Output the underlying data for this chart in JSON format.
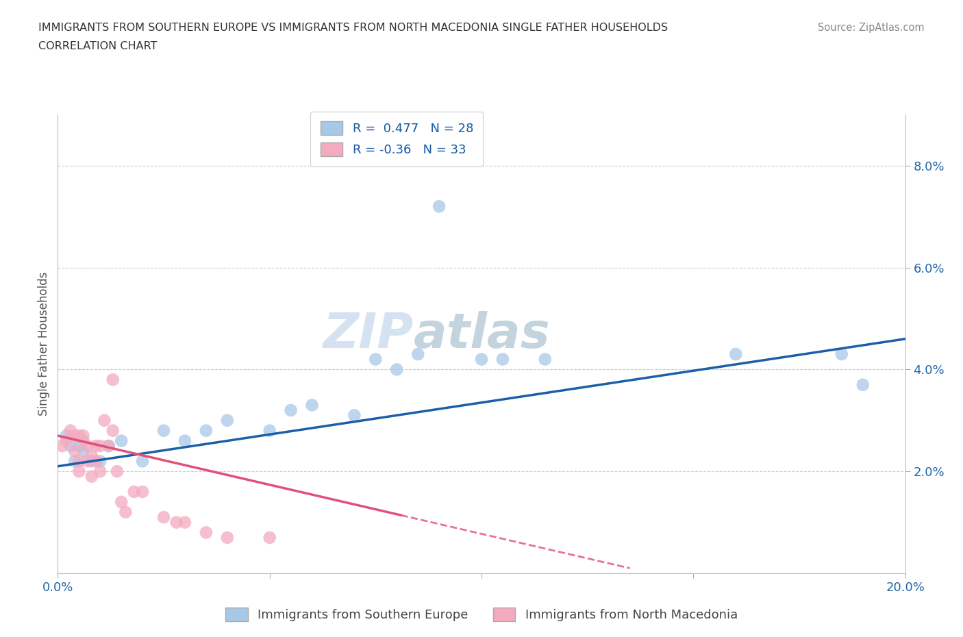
{
  "title_line1": "IMMIGRANTS FROM SOUTHERN EUROPE VS IMMIGRANTS FROM NORTH MACEDONIA SINGLE FATHER HOUSEHOLDS",
  "title_line2": "CORRELATION CHART",
  "source_text": "Source: ZipAtlas.com",
  "ylabel": "Single Father Households",
  "watermark_part1": "ZIP",
  "watermark_part2": "atlas",
  "blue_R": 0.477,
  "blue_N": 28,
  "pink_R": -0.36,
  "pink_N": 33,
  "blue_color": "#A8C8E8",
  "pink_color": "#F4AABF",
  "blue_line_color": "#1A5FA8",
  "pink_line_color": "#E0507A",
  "background_color": "#FFFFFF",
  "xlim": [
    0.0,
    0.2
  ],
  "ylim": [
    0.0,
    0.09
  ],
  "grid_color": "#CCCCCC",
  "legend_label_blue": "Immigrants from Southern Europe",
  "legend_label_pink": "Immigrants from North Macedonia",
  "blue_scatter_x": [
    0.002,
    0.003,
    0.004,
    0.005,
    0.006,
    0.008,
    0.01,
    0.012,
    0.015,
    0.02,
    0.025,
    0.03,
    0.035,
    0.04,
    0.05,
    0.055,
    0.06,
    0.07,
    0.075,
    0.08,
    0.085,
    0.09,
    0.1,
    0.105,
    0.115,
    0.16,
    0.185,
    0.19
  ],
  "blue_scatter_y": [
    0.027,
    0.025,
    0.022,
    0.025,
    0.024,
    0.022,
    0.022,
    0.025,
    0.026,
    0.022,
    0.028,
    0.026,
    0.028,
    0.03,
    0.028,
    0.032,
    0.033,
    0.031,
    0.042,
    0.04,
    0.043,
    0.072,
    0.042,
    0.042,
    0.042,
    0.043,
    0.043,
    0.037
  ],
  "pink_scatter_x": [
    0.001,
    0.002,
    0.003,
    0.004,
    0.004,
    0.005,
    0.005,
    0.005,
    0.006,
    0.006,
    0.007,
    0.007,
    0.008,
    0.008,
    0.009,
    0.009,
    0.01,
    0.01,
    0.011,
    0.012,
    0.013,
    0.013,
    0.014,
    0.015,
    0.016,
    0.018,
    0.02,
    0.025,
    0.028,
    0.03,
    0.035,
    0.04,
    0.05
  ],
  "pink_scatter_y": [
    0.025,
    0.026,
    0.028,
    0.027,
    0.024,
    0.027,
    0.022,
    0.02,
    0.026,
    0.027,
    0.025,
    0.022,
    0.023,
    0.019,
    0.025,
    0.022,
    0.025,
    0.02,
    0.03,
    0.025,
    0.038,
    0.028,
    0.02,
    0.014,
    0.012,
    0.016,
    0.016,
    0.011,
    0.01,
    0.01,
    0.008,
    0.007,
    0.007
  ],
  "blue_line_x0": 0.0,
  "blue_line_y0": 0.021,
  "blue_line_x1": 0.2,
  "blue_line_y1": 0.046,
  "pink_line_x0": 0.0,
  "pink_line_y0": 0.027,
  "pink_line_x1": 0.135,
  "pink_line_y1": 0.001
}
